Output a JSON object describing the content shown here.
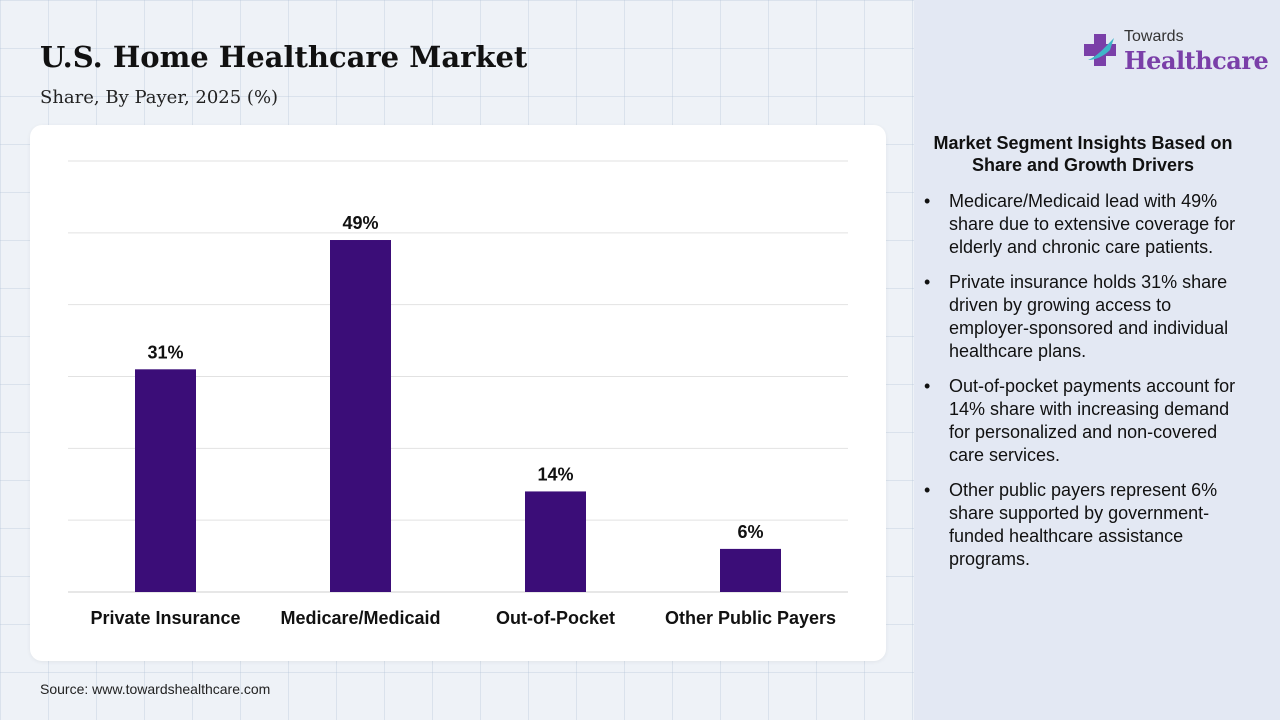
{
  "header": {
    "title": "U.S. Home Healthcare Market",
    "subtitle": "Share, By Payer, 2025 (%)"
  },
  "logo": {
    "line1": "Towards",
    "line2": "Healthcare",
    "icon": "cross-logo-icon",
    "colors": {
      "purple": "#7a3fa8",
      "teal": "#3fb6c8"
    }
  },
  "chart_data": {
    "type": "bar",
    "title": "",
    "xlabel": "",
    "ylabel": "",
    "categories": [
      "Private Insurance",
      "Medicare/Medicaid",
      "Out-of-Pocket",
      "Other Public Payers"
    ],
    "values": [
      31,
      49,
      14,
      6
    ],
    "data_labels": [
      "31%",
      "49%",
      "14%",
      "6%"
    ],
    "ylim": [
      0,
      60
    ],
    "grid": true,
    "bar_color": "#3b0d78"
  },
  "insights": {
    "heading": "Market Segment Insights Based on Share and Growth Drivers",
    "bullet": "•",
    "items": [
      "Medicare/Medicaid lead with 49% share due to extensive coverage for elderly and chronic care patients.",
      "Private insurance holds 31% share driven by growing access to employer-sponsored and individual healthcare plans.",
      "Out-of-pocket payments account for 14% share with increasing demand for personalized and non-covered care services.",
      "Other public payers represent 6% share supported by government-funded healthcare assistance programs."
    ]
  },
  "footer": {
    "source": "Source: www.towardshealthcare.com"
  }
}
